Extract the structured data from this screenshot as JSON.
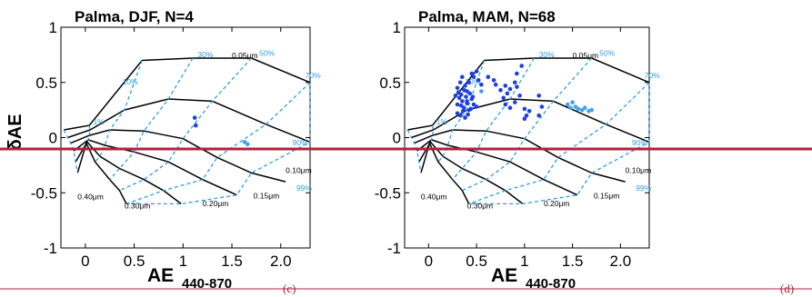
{
  "chart_data": [
    {
      "type": "scatter",
      "title": "Palma, DJF, N=4",
      "panel_label": "(c)",
      "xlabel": "AE",
      "xlabel_sub": "440-870",
      "ylabel": "δAE",
      "xlim": [
        -0.25,
        2.3
      ],
      "ylim": [
        -1,
        1
      ],
      "x_ticks": [
        0,
        0.5,
        1,
        1.5,
        2
      ],
      "x_tick_labels": [
        "0",
        "0.5",
        "1",
        "1.5",
        "2.0"
      ],
      "y_ticks": [
        -1,
        -0.5,
        0,
        0.5,
        1
      ],
      "y_tick_labels": [
        "-1",
        "-0.5",
        "0",
        "0.5",
        "1"
      ],
      "series": [
        {
          "color": "#1f3fe0",
          "points": [
            [
              1.12,
              0.18
            ],
            [
              1.13,
              0.11
            ]
          ]
        },
        {
          "color": "#41a2ee",
          "points": [
            [
              1.63,
              -0.04
            ],
            [
              1.66,
              -0.06
            ]
          ]
        }
      ]
    },
    {
      "type": "scatter",
      "title": "Palma, MAM, N=68",
      "panel_label": "(d)",
      "xlabel": "AE",
      "xlabel_sub": "440-870",
      "ylabel": "",
      "xlim": [
        -0.25,
        2.3
      ],
      "ylim": [
        -1,
        1
      ],
      "x_ticks": [
        0,
        0.5,
        1,
        1.5,
        2
      ],
      "x_tick_labels": [
        "0",
        "0.5",
        "1",
        "1.5",
        "2.0"
      ],
      "y_ticks": [
        -1,
        -0.5,
        0,
        0.5,
        1
      ],
      "y_tick_labels": [
        "-1",
        "-0.5",
        "0",
        "0.5",
        "1"
      ],
      "series": [
        {
          "color": "#1f3fe0",
          "points": [
            [
              0.3,
              0.45
            ],
            [
              0.33,
              0.5
            ],
            [
              0.35,
              0.55
            ],
            [
              0.38,
              0.47
            ],
            [
              0.4,
              0.42
            ],
            [
              0.42,
              0.5
            ],
            [
              0.45,
              0.58
            ],
            [
              0.47,
              0.55
            ],
            [
              0.5,
              0.6
            ],
            [
              0.52,
              0.52
            ],
            [
              0.55,
              0.48
            ],
            [
              0.3,
              0.3
            ],
            [
              0.32,
              0.36
            ],
            [
              0.35,
              0.33
            ],
            [
              0.37,
              0.27
            ],
            [
              0.4,
              0.31
            ],
            [
              0.42,
              0.25
            ],
            [
              0.45,
              0.35
            ],
            [
              0.47,
              0.3
            ],
            [
              0.5,
              0.28
            ],
            [
              0.3,
              0.22
            ],
            [
              0.33,
              0.2
            ],
            [
              0.36,
              0.24
            ],
            [
              0.38,
              0.18
            ],
            [
              0.41,
              0.21
            ],
            [
              0.44,
              0.26
            ],
            [
              0.28,
              0.38
            ],
            [
              0.31,
              0.41
            ],
            [
              0.34,
              0.39
            ],
            [
              0.37,
              0.43
            ],
            [
              0.39,
              0.37
            ],
            [
              0.43,
              0.4
            ],
            [
              0.46,
              0.37
            ],
            [
              0.7,
              0.48
            ],
            [
              0.75,
              0.43
            ],
            [
              0.78,
              0.36
            ],
            [
              0.8,
              0.47
            ],
            [
              0.82,
              0.4
            ],
            [
              0.85,
              0.44
            ],
            [
              0.9,
              0.5
            ],
            [
              0.92,
              0.46
            ],
            [
              0.95,
              0.38
            ],
            [
              0.97,
              0.65
            ],
            [
              0.92,
              0.58
            ],
            [
              0.8,
              0.3
            ],
            [
              0.85,
              0.27
            ],
            [
              0.9,
              0.32
            ],
            [
              1.0,
              0.26
            ],
            [
              1.0,
              0.17
            ],
            [
              1.02,
              0.2
            ],
            [
              1.05,
              0.24
            ],
            [
              1.15,
              0.38
            ],
            [
              1.18,
              0.28
            ],
            [
              0.62,
              0.55
            ],
            [
              0.68,
              0.52
            ],
            [
              1.15,
              0.2
            ],
            [
              0.4,
              0.33
            ],
            [
              0.34,
              0.29
            ]
          ]
        },
        {
          "color": "#41a2ee",
          "points": [
            [
              1.45,
              0.3
            ],
            [
              1.48,
              0.27
            ],
            [
              1.5,
              0.32
            ],
            [
              1.53,
              0.28
            ],
            [
              1.56,
              0.26
            ],
            [
              1.6,
              0.25
            ],
            [
              1.63,
              0.27
            ],
            [
              1.67,
              0.24
            ],
            [
              1.7,
              0.25
            ],
            [
              0.55,
              0.42
            ]
          ]
        }
      ]
    }
  ],
  "grid_labels": {
    "fine_mode_fraction": [
      "1%",
      "10%",
      "30%",
      "50%",
      "70%",
      "90%",
      "99%"
    ],
    "radius": [
      "0.05μm",
      "0.10μm",
      "0.15μm",
      "0.20μm",
      "0.30μm",
      "0.40μm"
    ]
  },
  "colors": {
    "series_dark": "#1f3fe0",
    "series_light": "#41a2ee",
    "radius_curves": "#000000",
    "eta_curves": "#2f9fe0",
    "annotation": "#b0223f"
  }
}
